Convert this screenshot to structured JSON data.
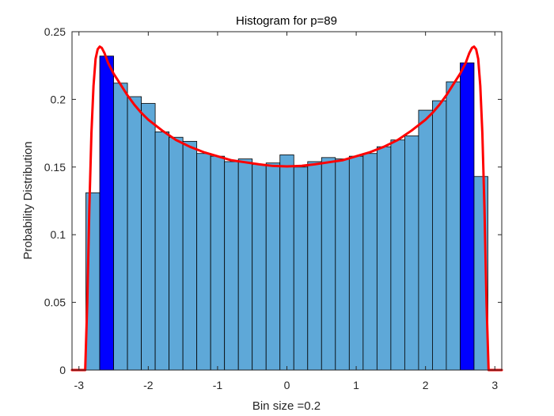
{
  "chart_data": {
    "type": "bar",
    "title": "Histogram for p=89",
    "xlabel": "Bin size =0.2",
    "ylabel": "Probability Distribution",
    "xlim": [
      -3.1,
      3.1
    ],
    "ylim": [
      0,
      0.25
    ],
    "xticks": [
      -3,
      -2,
      -1,
      0,
      1,
      2,
      3
    ],
    "xtick_labels": [
      "-3",
      "-2",
      "-1",
      "0",
      "1",
      "2",
      "3"
    ],
    "yticks": [
      0,
      0.05,
      0.1,
      0.15,
      0.2,
      0.25
    ],
    "ytick_labels": [
      "0",
      "0.05",
      "0.1",
      "0.15",
      "0.2",
      "0.25"
    ],
    "grid": false,
    "bin_width": 0.2,
    "bin_edges_start": -2.9,
    "bins": [
      {
        "x": -2.8,
        "value": 0.131
      },
      {
        "x": -2.6,
        "value": 0.232,
        "highlight": true
      },
      {
        "x": -2.4,
        "value": 0.212
      },
      {
        "x": -2.2,
        "value": 0.202
      },
      {
        "x": -2.0,
        "value": 0.197
      },
      {
        "x": -1.8,
        "value": 0.176
      },
      {
        "x": -1.6,
        "value": 0.172
      },
      {
        "x": -1.4,
        "value": 0.169
      },
      {
        "x": -1.2,
        "value": 0.16
      },
      {
        "x": -1.0,
        "value": 0.158
      },
      {
        "x": -0.8,
        "value": 0.154
      },
      {
        "x": -0.6,
        "value": 0.156
      },
      {
        "x": -0.4,
        "value": 0.152
      },
      {
        "x": -0.2,
        "value": 0.153
      },
      {
        "x": 0.0,
        "value": 0.159
      },
      {
        "x": 0.2,
        "value": 0.15
      },
      {
        "x": 0.4,
        "value": 0.154
      },
      {
        "x": 0.6,
        "value": 0.157
      },
      {
        "x": 0.8,
        "value": 0.156
      },
      {
        "x": 1.0,
        "value": 0.158
      },
      {
        "x": 1.2,
        "value": 0.16
      },
      {
        "x": 1.4,
        "value": 0.165
      },
      {
        "x": 1.6,
        "value": 0.17
      },
      {
        "x": 1.8,
        "value": 0.173
      },
      {
        "x": 2.0,
        "value": 0.192
      },
      {
        "x": 2.2,
        "value": 0.199
      },
      {
        "x": 2.4,
        "value": 0.213
      },
      {
        "x": 2.6,
        "value": 0.227,
        "highlight": true
      },
      {
        "x": 2.8,
        "value": 0.143
      }
    ],
    "curve": {
      "name": "density curve",
      "points": [
        [
          -3.1,
          0.0
        ],
        [
          -2.91,
          0.0
        ],
        [
          -2.88,
          0.05
        ],
        [
          -2.85,
          0.12
        ],
        [
          -2.82,
          0.175
        ],
        [
          -2.79,
          0.21
        ],
        [
          -2.76,
          0.23
        ],
        [
          -2.73,
          0.237
        ],
        [
          -2.7,
          0.239
        ],
        [
          -2.67,
          0.238
        ],
        [
          -2.63,
          0.234
        ],
        [
          -2.58,
          0.227
        ],
        [
          -2.5,
          0.219
        ],
        [
          -2.4,
          0.211
        ],
        [
          -2.3,
          0.203
        ],
        [
          -2.2,
          0.196
        ],
        [
          -2.1,
          0.19
        ],
        [
          -2.0,
          0.185
        ],
        [
          -1.8,
          0.177
        ],
        [
          -1.6,
          0.17
        ],
        [
          -1.4,
          0.165
        ],
        [
          -1.2,
          0.161
        ],
        [
          -1.0,
          0.158
        ],
        [
          -0.8,
          0.155
        ],
        [
          -0.6,
          0.1535
        ],
        [
          -0.4,
          0.152
        ],
        [
          -0.2,
          0.1508
        ],
        [
          0.0,
          0.1505
        ],
        [
          0.2,
          0.1508
        ],
        [
          0.4,
          0.152
        ],
        [
          0.6,
          0.1535
        ],
        [
          0.8,
          0.155
        ],
        [
          1.0,
          0.158
        ],
        [
          1.2,
          0.161
        ],
        [
          1.4,
          0.165
        ],
        [
          1.6,
          0.17
        ],
        [
          1.8,
          0.177
        ],
        [
          2.0,
          0.185
        ],
        [
          2.1,
          0.19
        ],
        [
          2.2,
          0.196
        ],
        [
          2.3,
          0.203
        ],
        [
          2.4,
          0.211
        ],
        [
          2.5,
          0.219
        ],
        [
          2.58,
          0.227
        ],
        [
          2.63,
          0.234
        ],
        [
          2.67,
          0.238
        ],
        [
          2.7,
          0.239
        ],
        [
          2.73,
          0.237
        ],
        [
          2.76,
          0.23
        ],
        [
          2.79,
          0.21
        ],
        [
          2.82,
          0.175
        ],
        [
          2.85,
          0.12
        ],
        [
          2.88,
          0.05
        ],
        [
          2.91,
          0.0
        ],
        [
          3.1,
          0.0
        ]
      ]
    },
    "colors": {
      "bar_fill": "#5ea8d8",
      "bar_highlight": "#0000ff",
      "bar_edge": "#000000",
      "curve": "#ff0000",
      "axis": "#262626"
    }
  }
}
